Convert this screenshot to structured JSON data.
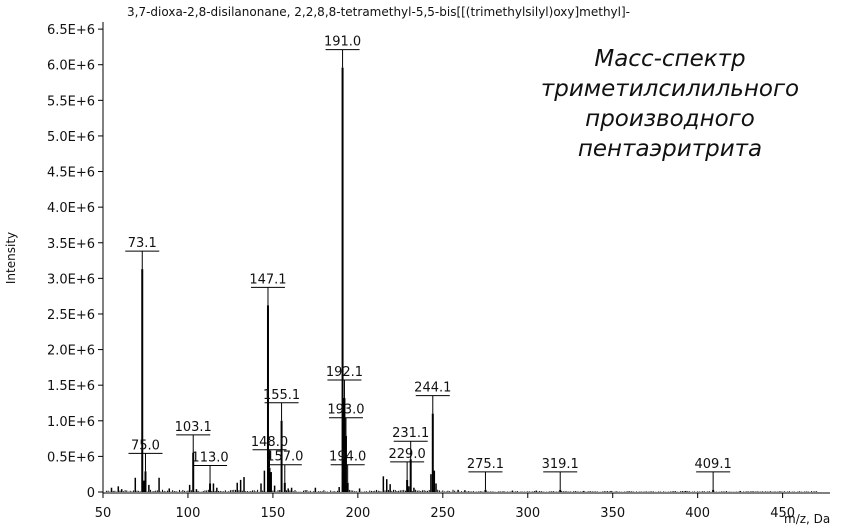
{
  "chart_data": {
    "type": "bar",
    "title": "3,7-dioxa-2,8-disilanonane, 2,2,8,8-tetramethyl-5,5-bis[[(trimethylsilyl)oxy]methyl]-",
    "ylabel": "Intensity",
    "xlabel": "m/z, Da",
    "xlim": [
      50,
      472
    ],
    "ylim": [
      0,
      6600000
    ],
    "x_ticks": [
      50,
      100,
      150,
      200,
      250,
      300,
      350,
      400,
      450
    ],
    "y_ticks": [
      {
        "value": 0,
        "label": "0"
      },
      {
        "value": 500000,
        "label": "0.5E+6"
      },
      {
        "value": 1000000,
        "label": "1.0E+6"
      },
      {
        "value": 1500000,
        "label": "1.5E+6"
      },
      {
        "value": 2000000,
        "label": "2.0E+6"
      },
      {
        "value": 2500000,
        "label": "2.5E+6"
      },
      {
        "value": 3000000,
        "label": "3.0E+6"
      },
      {
        "value": 3500000,
        "label": "3.5E+6"
      },
      {
        "value": 4000000,
        "label": "4.0E+6"
      },
      {
        "value": 4500000,
        "label": "4.5E+6"
      },
      {
        "value": 5000000,
        "label": "5.0E+6"
      },
      {
        "value": 5500000,
        "label": "5.5E+6"
      },
      {
        "value": 6000000,
        "label": "6.0E+6"
      },
      {
        "value": 6500000,
        "label": "6.5E+6"
      }
    ],
    "grid": false,
    "labeled_peaks": [
      {
        "mz": 73.1,
        "intensity": 3130000,
        "label": "73.1"
      },
      {
        "mz": 75.0,
        "intensity": 290000,
        "label": "75.0"
      },
      {
        "mz": 103.1,
        "intensity": 550000,
        "label": "103.1"
      },
      {
        "mz": 113.0,
        "intensity": 120000,
        "label": "113.0"
      },
      {
        "mz": 147.1,
        "intensity": 2620000,
        "label": "147.1"
      },
      {
        "mz": 148.0,
        "intensity": 340000,
        "label": "148.0"
      },
      {
        "mz": 155.1,
        "intensity": 1000000,
        "label": "155.1"
      },
      {
        "mz": 157.0,
        "intensity": 130000,
        "label": "157.0"
      },
      {
        "mz": 191.0,
        "intensity": 5960000,
        "label": "191.0"
      },
      {
        "mz": 192.1,
        "intensity": 1320000,
        "label": "192.1"
      },
      {
        "mz": 193.0,
        "intensity": 790000,
        "label": "193.0"
      },
      {
        "mz": 194.0,
        "intensity": 130000,
        "label": "194.0"
      },
      {
        "mz": 229.0,
        "intensity": 170000,
        "label": "229.0"
      },
      {
        "mz": 231.1,
        "intensity": 460000,
        "label": "231.1"
      },
      {
        "mz": 244.1,
        "intensity": 1100000,
        "label": "244.1"
      },
      {
        "mz": 275.1,
        "intensity": 30000,
        "label": "275.1"
      },
      {
        "mz": 319.1,
        "intensity": 30000,
        "label": "319.1"
      },
      {
        "mz": 409.1,
        "intensity": 30000,
        "label": "409.1"
      }
    ],
    "minor_peaks": [
      {
        "mz": 55,
        "intensity": 60000
      },
      {
        "mz": 59,
        "intensity": 80000
      },
      {
        "mz": 61,
        "intensity": 40000
      },
      {
        "mz": 69,
        "intensity": 200000
      },
      {
        "mz": 74,
        "intensity": 160000
      },
      {
        "mz": 77,
        "intensity": 100000
      },
      {
        "mz": 83,
        "intensity": 200000
      },
      {
        "mz": 89,
        "intensity": 50000
      },
      {
        "mz": 101,
        "intensity": 100000
      },
      {
        "mz": 105,
        "intensity": 40000
      },
      {
        "mz": 115,
        "intensity": 120000
      },
      {
        "mz": 117,
        "intensity": 60000
      },
      {
        "mz": 129,
        "intensity": 130000
      },
      {
        "mz": 131,
        "intensity": 170000
      },
      {
        "mz": 133,
        "intensity": 210000
      },
      {
        "mz": 143,
        "intensity": 120000
      },
      {
        "mz": 145,
        "intensity": 300000
      },
      {
        "mz": 149,
        "intensity": 280000
      },
      {
        "mz": 151,
        "intensity": 90000
      },
      {
        "mz": 159,
        "intensity": 50000
      },
      {
        "mz": 161,
        "intensity": 60000
      },
      {
        "mz": 175,
        "intensity": 60000
      },
      {
        "mz": 189,
        "intensity": 70000
      },
      {
        "mz": 201,
        "intensity": 50000
      },
      {
        "mz": 215,
        "intensity": 220000
      },
      {
        "mz": 217,
        "intensity": 180000
      },
      {
        "mz": 219,
        "intensity": 110000
      },
      {
        "mz": 230,
        "intensity": 80000
      },
      {
        "mz": 233,
        "intensity": 60000
      },
      {
        "mz": 243,
        "intensity": 250000
      },
      {
        "mz": 245,
        "intensity": 300000
      },
      {
        "mz": 246,
        "intensity": 120000
      },
      {
        "mz": 259,
        "intensity": 30000
      },
      {
        "mz": 263,
        "intensity": 25000
      },
      {
        "mz": 291,
        "intensity": 20000
      },
      {
        "mz": 305,
        "intensity": 20000
      },
      {
        "mz": 333,
        "intensity": 15000
      },
      {
        "mz": 349,
        "intensity": 15000
      },
      {
        "mz": 393,
        "intensity": 15000
      },
      {
        "mz": 425,
        "intensity": 15000
      }
    ]
  },
  "annotation": {
    "lines": [
      "Масс-спектр",
      "триметилсилильного",
      "производного",
      "пентаэритрита"
    ]
  }
}
